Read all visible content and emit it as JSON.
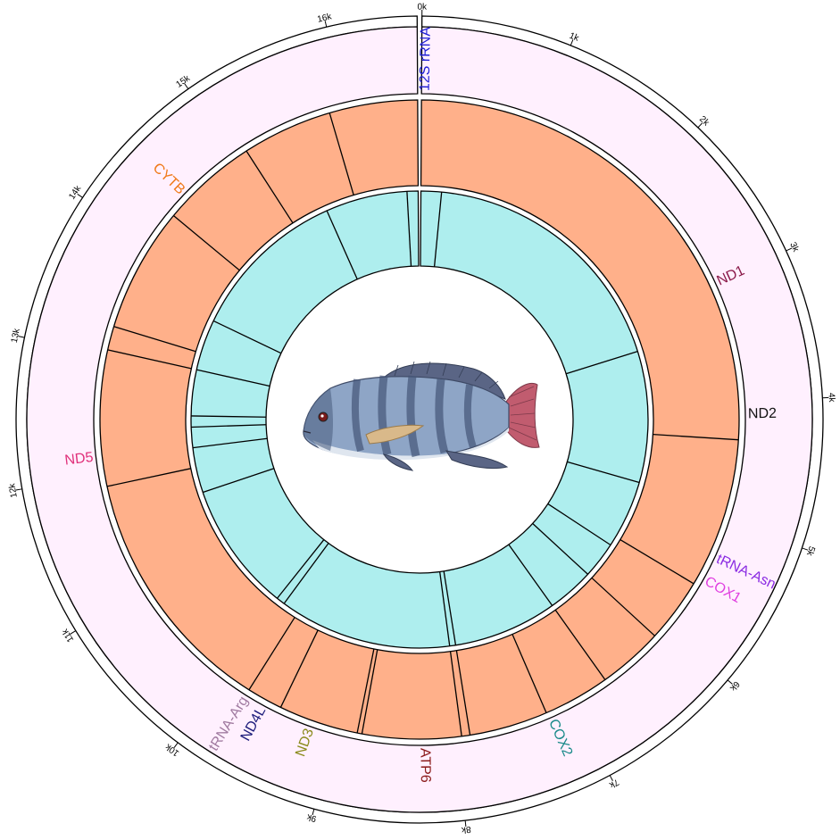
{
  "diagram": {
    "total_length_bp": 16600,
    "ticks": [
      {
        "pos": 0,
        "label": "0k"
      },
      {
        "pos": 1000,
        "label": "1k"
      },
      {
        "pos": 2000,
        "label": "2k"
      },
      {
        "pos": 3000,
        "label": "3k"
      },
      {
        "pos": 4000,
        "label": "4k"
      },
      {
        "pos": 5000,
        "label": "5k"
      },
      {
        "pos": 6000,
        "label": "6k"
      },
      {
        "pos": 7000,
        "label": "7k"
      },
      {
        "pos": 8000,
        "label": "8k"
      },
      {
        "pos": 9000,
        "label": "9k"
      },
      {
        "pos": 10000,
        "label": "10k"
      },
      {
        "pos": 11000,
        "label": "11k"
      },
      {
        "pos": 12000,
        "label": "12k"
      },
      {
        "pos": 13000,
        "label": "13k"
      },
      {
        "pos": 14000,
        "label": "14k"
      },
      {
        "pos": 15000,
        "label": "15k"
      },
      {
        "pos": 16000,
        "label": "16k"
      }
    ],
    "gene_labels": [
      {
        "text": "12S rRNA",
        "pos": 30,
        "color": "#1f1fd6"
      },
      {
        "text": "ND1",
        "pos": 3000,
        "color": "#8b1a4a"
      },
      {
        "text": "ND2",
        "pos": 4100,
        "color": "#111111"
      },
      {
        "text": "tRNA-Asn",
        "pos": 5300,
        "color": "#8a2be2"
      },
      {
        "text": "COX1",
        "pos": 5500,
        "color": "#e040e0"
      },
      {
        "text": "COX2",
        "pos": 7200,
        "color": "#1a8a8a"
      },
      {
        "text": "ATP6",
        "pos": 8260,
        "color": "#8b1a1a"
      },
      {
        "text": "ND3",
        "pos": 9200,
        "color": "#8a8a1a"
      },
      {
        "text": "ND4L",
        "pos": 9620,
        "color": "#1a1a7a"
      },
      {
        "text": "tRNA-Arg",
        "pos": 9780,
        "color": "#a07aa0"
      },
      {
        "text": "ND5",
        "pos": 12150,
        "color": "#e0307a"
      },
      {
        "text": "CYTB",
        "pos": 14480,
        "color": "#f07a1a"
      }
    ],
    "colors": {
      "outer_ring": "#fff0fe",
      "middle_ring": "#ffb08a",
      "inner_ring": "#aeeeee",
      "outline": "#000000"
    },
    "middle_ring_boundaries": [
      0,
      4310,
      5570,
      6110,
      6660,
      7220,
      7880,
      7950,
      8780,
      8820,
      9490,
      9790,
      11900,
      13040,
      13240,
      14290,
      15100,
      15860
    ],
    "inner_ring_boundaries": [
      0,
      240,
      3340,
      4880,
      5680,
      6110,
      6660,
      7880,
      7950,
      9980,
      10080,
      11600,
      12130,
      12370,
      12500,
      13040,
      13640,
      15510,
      16470
    ],
    "fish_icon": "tilapia-fish-illustration"
  }
}
